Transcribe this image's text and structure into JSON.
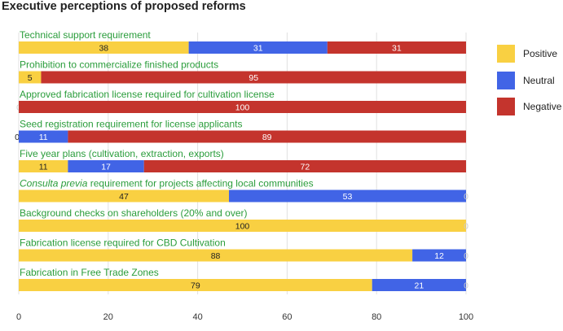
{
  "title": "Executive perceptions of proposed reforms",
  "colors": {
    "positive": "#f9d042",
    "neutral": "#4164e6",
    "negative": "#c4342d",
    "category_label": "#2a9d3b",
    "grid": "#e0e0e0"
  },
  "chart_data": {
    "type": "bar",
    "orientation": "horizontal",
    "stacked": true,
    "title": "Executive perceptions of proposed reforms",
    "xlabel": "",
    "ylabel": "",
    "xlim": [
      0,
      100
    ],
    "xticks": [
      0,
      20,
      40,
      60,
      80,
      100
    ],
    "grid": true,
    "legend_position": "right",
    "categories": [
      "Technical support requirement",
      "Prohibition to commercialize finished products",
      "Approved fabrication license required for cultivation license",
      "Seed registration requirement for license applicants",
      "Five year plans (cultivation, extraction, exports)",
      "Consulta previa requirement for projects affecting local communities",
      "Background checks on shareholders (20% and over)",
      "Fabrication license required for CBD Cultivation",
      "Fabrication in Free Trade Zones"
    ],
    "series": [
      {
        "name": "Positive",
        "values": [
          38,
          5,
          0,
          0,
          11,
          47,
          100,
          88,
          79
        ]
      },
      {
        "name": "Neutral",
        "values": [
          31,
          0,
          0,
          11,
          17,
          53,
          0,
          12,
          21
        ]
      },
      {
        "name": "Negative",
        "values": [
          31,
          95,
          100,
          89,
          72,
          0,
          0,
          0,
          0
        ]
      }
    ]
  }
}
